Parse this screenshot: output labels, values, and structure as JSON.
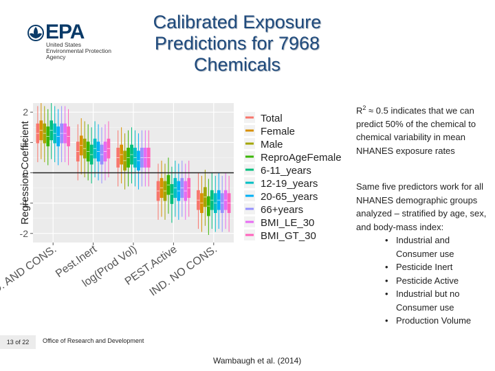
{
  "header": {
    "logo": {
      "wordmark": "EPA",
      "agency_name": "United States\nEnvironmental Protection\nAgency",
      "color": "#0a3a68"
    },
    "title": "Calibrated Exposure Predictions for 7968 Chemicals"
  },
  "chart_data": {
    "type": "boxplot",
    "ylabel": "Regression Coefficient",
    "xlabel": "",
    "ylim": [
      -2.3,
      2.3
    ],
    "yticks": [
      -2,
      -1,
      0,
      1,
      2
    ],
    "legend_position": "right",
    "categories": [
      "IND. AND CONS.",
      "Pest.Inert",
      "log(Prod Vol)",
      "PEST.Active",
      "IND. NO CONS."
    ],
    "series": [
      {
        "name": "Total",
        "color": "#f8766d",
        "median": [
          1.3,
          0.7,
          0.5,
          -0.6,
          -0.9
        ]
      },
      {
        "name": "Female",
        "color": "#d89000",
        "median": [
          1.4,
          0.9,
          0.6,
          -0.5,
          -1.0
        ]
      },
      {
        "name": "Male",
        "color": "#a3a500",
        "median": [
          1.3,
          0.8,
          0.4,
          -0.6,
          -0.8
        ]
      },
      {
        "name": "ReproAgeFemale",
        "color": "#39b600",
        "median": [
          1.2,
          0.7,
          0.5,
          -0.4,
          -1.1
        ]
      },
      {
        "name": "6-11_years",
        "color": "#00bf7d",
        "median": [
          1.4,
          0.6,
          0.6,
          -0.7,
          -0.9
        ]
      },
      {
        "name": "12-19_years",
        "color": "#00bfc4",
        "median": [
          1.3,
          0.8,
          0.5,
          -0.5,
          -1.0
        ]
      },
      {
        "name": "20-65_years",
        "color": "#00b0f6",
        "median": [
          1.2,
          0.7,
          0.4,
          -0.6,
          -0.9
        ]
      },
      {
        "name": "66+years",
        "color": "#9590ff",
        "median": [
          1.3,
          0.6,
          0.5,
          -0.5,
          -1.0
        ]
      },
      {
        "name": "BMI_LE_30",
        "color": "#e76bf3",
        "median": [
          1.3,
          0.7,
          0.5,
          -0.6,
          -0.9
        ]
      },
      {
        "name": "BMI_GT_30",
        "color": "#ff62bc",
        "median": [
          1.2,
          0.8,
          0.5,
          -0.5,
          -1.0
        ]
      }
    ],
    "grid": true,
    "reference_line": 0
  },
  "notes": {
    "r2": "R2 ≈ 0.5 indicates that we can predict 50% of the chemical to chemical variability in mean NHANES exposure rates",
    "predictors_intro": "Same five predictors work for all NHANES demographic groups analyzed – stratified by age, sex, and body-mass index:",
    "predictors": [
      "Industrial and Consumer use",
      "Pesticide Inert",
      "Pesticide Active",
      "Industrial but no Consumer use",
      "Production Volume"
    ]
  },
  "footer": {
    "slide_number": "13 of 22",
    "office": "Office of Research and Development",
    "citation": "Wambaugh et al. (2014)"
  }
}
